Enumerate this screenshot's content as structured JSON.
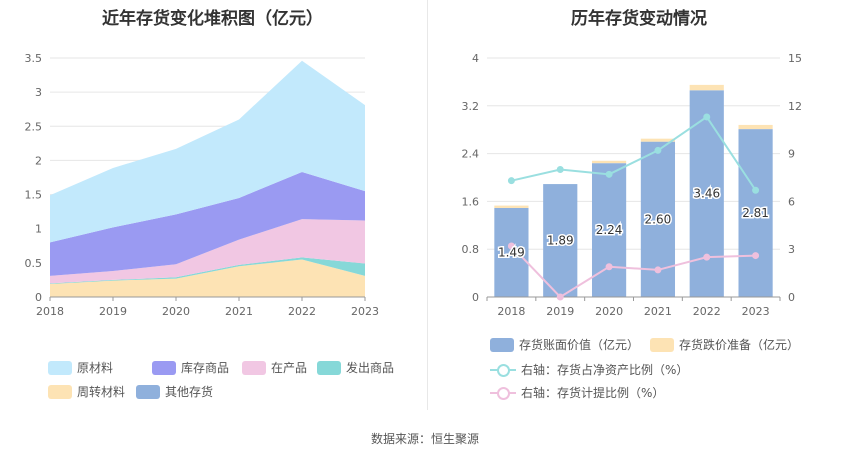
{
  "source": "数据来源：恒生聚源",
  "chart_data": [
    {
      "type": "area",
      "stacked": true,
      "title": "近年存货变化堆积图（亿元）",
      "categories": [
        "2018",
        "2019",
        "2020",
        "2021",
        "2022",
        "2023"
      ],
      "ylim": [
        0,
        3.5
      ],
      "yticks": [
        "0",
        "0.5",
        "1",
        "1.5",
        "2",
        "2.5",
        "3",
        "3.5"
      ],
      "grid": true,
      "legend_position": "bottom",
      "series": [
        {
          "name": "周转材料",
          "color": "#fde3b4",
          "values": [
            0.19,
            0.24,
            0.27,
            0.45,
            0.55,
            0.31
          ]
        },
        {
          "name": "其他存货",
          "color": "#8fb0dc",
          "values": [
            0.0,
            0.0,
            0.0,
            0.0,
            0.0,
            0.0
          ]
        },
        {
          "name": "发出商品",
          "color": "#86d8d8",
          "values": [
            0.01,
            0.01,
            0.02,
            0.02,
            0.03,
            0.18
          ]
        },
        {
          "name": "在产品",
          "color": "#f1c7e3",
          "values": [
            0.11,
            0.13,
            0.19,
            0.37,
            0.56,
            0.63
          ]
        },
        {
          "name": "库存商品",
          "color": "#9a9af2",
          "values": [
            0.49,
            0.64,
            0.73,
            0.61,
            0.69,
            0.43
          ]
        },
        {
          "name": "原材料",
          "color": "#c2e9fc",
          "values": [
            0.69,
            0.87,
            0.96,
            1.15,
            1.63,
            1.26
          ]
        }
      ],
      "legend_order": [
        "原材料",
        "库存商品",
        "在产品",
        "发出商品",
        "周转材料",
        "其他存货"
      ]
    },
    {
      "type": "bar",
      "title": "历年存货变动情况",
      "categories": [
        "2018",
        "2019",
        "2020",
        "2021",
        "2022",
        "2023"
      ],
      "ylim": [
        0,
        4
      ],
      "yticks": [
        "0",
        "0.8",
        "1.6",
        "2.4",
        "3.2",
        "4"
      ],
      "y2lim": [
        0,
        15
      ],
      "y2ticks": [
        "0",
        "3",
        "6",
        "9",
        "12",
        "15"
      ],
      "grid": true,
      "legend_position": "bottom",
      "series": [
        {
          "name": "存货账面价值（亿元）",
          "kind": "bar",
          "axis": "left",
          "color": "#8fb0dc",
          "values": [
            1.49,
            1.89,
            2.24,
            2.6,
            3.46,
            2.81
          ],
          "labels": [
            "1.49",
            "1.89",
            "2.24",
            "2.60",
            "3.46",
            "2.81"
          ]
        },
        {
          "name": "存货跌价准备（亿元）",
          "kind": "bar",
          "axis": "left",
          "color": "#fde3b4",
          "values": [
            0.04,
            0.0,
            0.04,
            0.05,
            0.09,
            0.07
          ]
        },
        {
          "name": "右轴：存货占净资产比例（%）",
          "kind": "line",
          "axis": "right",
          "color": "#9adfe0",
          "values": [
            7.3,
            8.0,
            7.7,
            9.2,
            11.3,
            6.7
          ]
        },
        {
          "name": "右轴：存货计提比例（%）",
          "kind": "line",
          "axis": "right",
          "color": "#efc0dd",
          "values": [
            3.2,
            0.0,
            1.9,
            1.7,
            2.5,
            2.6
          ]
        }
      ]
    }
  ]
}
